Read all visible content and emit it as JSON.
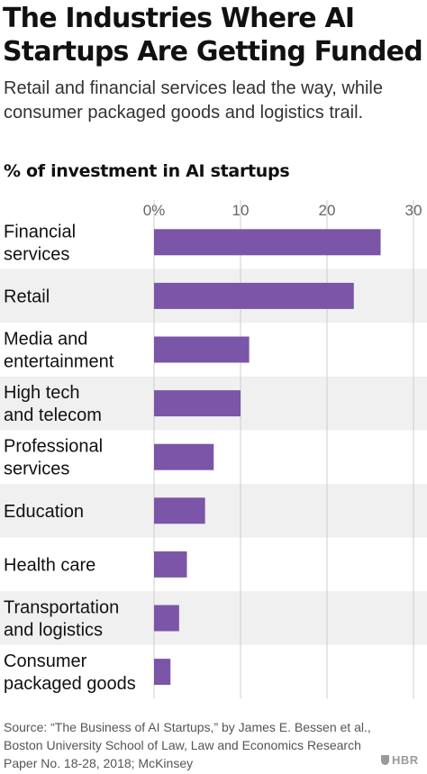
{
  "title": "The Industries Where AI Startups Are Getting Funded",
  "subtitle": "Retail and financial services lead the way, while consumer packaged goods and logistics trail.",
  "source": "Source: “The Business of AI Startups,” by James E. Bessen et al., Boston University School of Law, Law and Economics Research Paper No. 18-28, 2018; McKinsey",
  "logo_text": "HBR",
  "colors": {
    "bar": "#7b55a8",
    "band": "#f0f0f0",
    "grid": "#cccccc"
  },
  "chart_data": {
    "type": "bar",
    "orientation": "horizontal",
    "title": "% of investment in AI startups",
    "categories": [
      [
        "Financial",
        "services"
      ],
      [
        "Retail"
      ],
      [
        "Media and",
        "entertainment"
      ],
      [
        "High tech",
        "and telecom"
      ],
      [
        "Professional",
        "services"
      ],
      [
        "Education"
      ],
      [
        "Health care"
      ],
      [
        "Transportation",
        "and logistics"
      ],
      [
        "Consumer",
        "packaged goods"
      ]
    ],
    "values": [
      26.2,
      23.1,
      11.0,
      10.0,
      6.9,
      5.9,
      3.8,
      2.9,
      1.9
    ],
    "xlim": [
      0,
      30
    ],
    "ticks": [
      0,
      10,
      20,
      30
    ],
    "tick_labels": [
      "0%",
      "10",
      "20",
      "30"
    ],
    "grid": true,
    "alternating_bands": true
  }
}
